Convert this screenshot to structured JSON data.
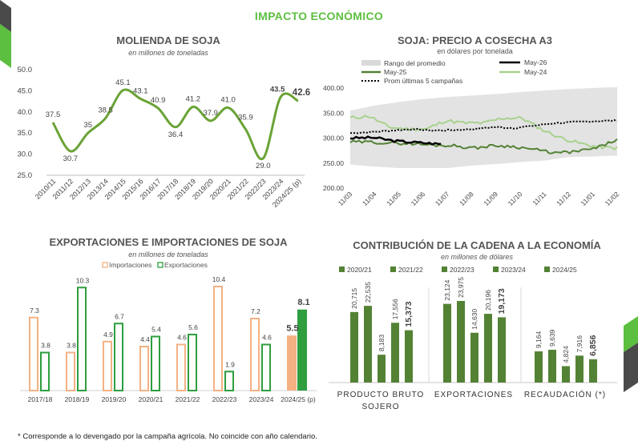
{
  "header": {
    "title": "IMPACTO ECONÓMICO"
  },
  "footnote": "* Corresponde a lo devengado por la campaña agrícola. No coincide con año calendario.",
  "colors": {
    "accent": "#5cbf3f",
    "line_green": "#6aa336",
    "import": "#f4b183",
    "export": "#2e9e3f",
    "dark_green": "#548235",
    "light_green": "#a9d18e"
  },
  "chart_data": [
    {
      "type": "line",
      "title": "MOLIENDA DE SOJA",
      "subtitle": "en millones de toneladas",
      "categories": [
        "2010/11",
        "2011/12",
        "2012/13",
        "2013/14",
        "2014/15",
        "2015/16",
        "2016/17",
        "2017/18",
        "2018/19",
        "2019/20",
        "2020/21",
        "2021/22",
        "2022/23",
        "2023/24",
        "2024/25 (p)"
      ],
      "series": [
        {
          "values": [
            37.5,
            30.7,
            35,
            38.5,
            45.1,
            43.1,
            40.9,
            36.4,
            41.2,
            37.9,
            41.0,
            35.9,
            29.0,
            43.5,
            42.6
          ]
        }
      ],
      "value_labels": [
        "37.5",
        "30.7",
        "35",
        "38.5",
        "45.1",
        "43.1",
        "40.9",
        "36.4",
        "41.2",
        "37.9",
        "41.0",
        "35.9",
        "29.0",
        "43.5",
        "42.6"
      ],
      "yticks": [
        "25.0",
        "30.0",
        "35.0",
        "40.0",
        "45.0",
        "50.0"
      ],
      "ylim": [
        25,
        50
      ],
      "grid": false
    },
    {
      "type": "line",
      "title": "SOJA: PRECIO A COSECHA A3",
      "subtitle": "en dólares por tonelada",
      "legend": [
        "Rango del promedio",
        "May-26",
        "May-25",
        "May-24",
        "Prom últimas 5 campañas"
      ],
      "xticks": [
        "11/03",
        "11/04",
        "11/05",
        "11/06",
        "11/07",
        "11/08",
        "11/09",
        "11/10",
        "11/11",
        "11/12",
        "11/01",
        "11/02"
      ],
      "yticks": [
        "200.00",
        "250.00",
        "300.00",
        "350.00",
        "400.00"
      ],
      "ylim": [
        200,
        400
      ],
      "series": [
        {
          "name": "Rango del promedio",
          "low": [
            247,
            243,
            240,
            240,
            240,
            245,
            248,
            252,
            255,
            262,
            263,
            265
          ],
          "high": [
            355,
            365,
            372,
            378,
            382,
            385,
            388,
            392,
            395,
            398,
            400,
            402
          ]
        },
        {
          "name": "May-26",
          "values": [
            300,
            301,
            294,
            291,
            288
          ]
        },
        {
          "name": "May-25",
          "values": [
            292,
            292,
            290,
            289,
            286,
            285,
            280,
            285,
            283,
            277,
            270,
            273,
            280,
            297
          ]
        },
        {
          "name": "May-24",
          "values": [
            340,
            344,
            322,
            318,
            318,
            335,
            330,
            330,
            340,
            340,
            318,
            301,
            290,
            282,
            280
          ]
        },
        {
          "name": "Prom últimas 5 campañas",
          "values": [
            310,
            312,
            315,
            318,
            315,
            316,
            318,
            322,
            320,
            325,
            330,
            332,
            334,
            335
          ]
        }
      ],
      "legend_position": "top"
    },
    {
      "type": "bar",
      "title": "EXPORTACIONES E IMPORTACIONES DE SOJA",
      "subtitle": "en millones de toneladas",
      "categories": [
        "2017/18",
        "2018/19",
        "2019/20",
        "2020/21",
        "2021/22",
        "2022/23",
        "2023/24",
        "2024/25 (p)"
      ],
      "series": [
        {
          "name": "Importaciones",
          "values": [
            7.3,
            3.8,
            4.9,
            4.4,
            4.6,
            10.4,
            7.2,
            5.5
          ]
        },
        {
          "name": "Exportaciones",
          "values": [
            3.8,
            10.3,
            6.7,
            5.4,
            5.6,
            1.9,
            4.6,
            8.1
          ]
        }
      ],
      "value_labels": {
        "Importaciones": [
          "7.3",
          "3.8",
          "4.9",
          "4.4",
          "4.6",
          "10.4",
          "7.2",
          "5.5"
        ],
        "Exportaciones": [
          "3.8",
          "10.3",
          "6.7",
          "5.4",
          "5.6",
          "1.9",
          "4.6",
          "8.1"
        ]
      },
      "legend_position": "top"
    },
    {
      "type": "bar",
      "title": "CONTRIBUCIÓN DE LA CADENA A LA ECONOMÍA",
      "subtitle": "en millones de dólares",
      "categories": [
        "PRODUCTO BRUTO SOJERO",
        "EXPORTACIONES",
        "RECAUDACIÓN (*)"
      ],
      "category_lines": [
        [
          "PRODUCTO BRUTO",
          "SOJERO"
        ],
        [
          "EXPORTACIONES"
        ],
        [
          "RECAUDACIÓN (*)"
        ]
      ],
      "series": [
        {
          "name": "2020/21",
          "values": [
            20715,
            23124,
            9164
          ]
        },
        {
          "name": "2021/22",
          "values": [
            22535,
            23975,
            9639
          ]
        },
        {
          "name": "2022/23",
          "values": [
            8183,
            14630,
            4824
          ]
        },
        {
          "name": "2023/24",
          "values": [
            17556,
            20196,
            7916
          ]
        },
        {
          "name": "2024/25",
          "values": [
            15373,
            19173,
            6856
          ]
        }
      ],
      "value_labels": [
        [
          "20,715",
          "22,535",
          "8,183",
          "17,556",
          "15,373"
        ],
        [
          "23,124",
          "23,975",
          "14,630",
          "20,196",
          "19,173"
        ],
        [
          "9,164",
          "9,639",
          "4,824",
          "7,916",
          "6,856"
        ]
      ],
      "legend_position": "top"
    }
  ]
}
